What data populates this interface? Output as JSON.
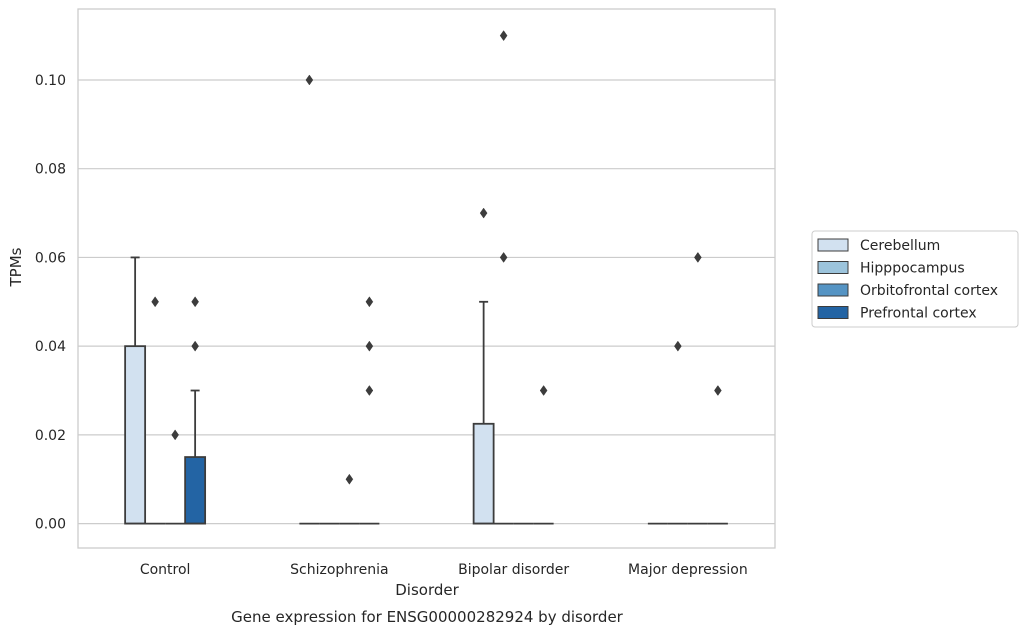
{
  "chart_data": {
    "type": "box",
    "xlabel": "Disorder",
    "ylabel": "TPMs",
    "caption": "Gene expression for ENSG00000282924 by disorder",
    "categories": [
      "Control",
      "Schizophrenia",
      "Bipolar disorder",
      "Major depression"
    ],
    "ylim": [
      -0.0055,
      0.116
    ],
    "yticks": [
      "0.00",
      "0.02",
      "0.04",
      "0.06",
      "0.08",
      "0.10"
    ],
    "grid": true,
    "legend_position": "right",
    "series": [
      {
        "name": "Cerebellum",
        "color": "#d2e1f0",
        "boxes": [
          {
            "q1": 0.0,
            "median": 0.0,
            "q3": 0.04,
            "whisker_low": 0.0,
            "whisker_high": 0.06,
            "outliers": []
          },
          {
            "q1": 0.0,
            "median": 0.0,
            "q3": 0.0,
            "whisker_low": 0.0,
            "whisker_high": 0.0,
            "outliers": [
              0.1
            ]
          },
          {
            "q1": 0.0,
            "median": 0.0,
            "q3": 0.0225,
            "whisker_low": 0.0,
            "whisker_high": 0.05,
            "outliers": [
              0.07
            ]
          },
          {
            "q1": 0.0,
            "median": 0.0,
            "q3": 0.0,
            "whisker_low": 0.0,
            "whisker_high": 0.0,
            "outliers": []
          }
        ]
      },
      {
        "name": "Hipppocampus",
        "color": "#9cc4dc",
        "boxes": [
          {
            "q1": 0.0,
            "median": 0.0,
            "q3": 0.0,
            "whisker_low": 0.0,
            "whisker_high": 0.0,
            "outliers": [
              0.05
            ]
          },
          {
            "q1": 0.0,
            "median": 0.0,
            "q3": 0.0,
            "whisker_low": 0.0,
            "whisker_high": 0.0,
            "outliers": []
          },
          {
            "q1": 0.0,
            "median": 0.0,
            "q3": 0.0,
            "whisker_low": 0.0,
            "whisker_high": 0.0,
            "outliers": [
              0.11,
              0.06
            ]
          },
          {
            "q1": 0.0,
            "median": 0.0,
            "q3": 0.0,
            "whisker_low": 0.0,
            "whisker_high": 0.0,
            "outliers": [
              0.04
            ]
          }
        ]
      },
      {
        "name": "Orbitofrontal cortex",
        "color": "#5594c4",
        "boxes": [
          {
            "q1": 0.0,
            "median": 0.0,
            "q3": 0.0,
            "whisker_low": 0.0,
            "whisker_high": 0.0,
            "outliers": [
              0.02
            ]
          },
          {
            "q1": 0.0,
            "median": 0.0,
            "q3": 0.0,
            "whisker_low": 0.0,
            "whisker_high": 0.0,
            "outliers": [
              0.01
            ]
          },
          {
            "q1": 0.0,
            "median": 0.0,
            "q3": 0.0,
            "whisker_low": 0.0,
            "whisker_high": 0.0,
            "outliers": []
          },
          {
            "q1": 0.0,
            "median": 0.0,
            "q3": 0.0,
            "whisker_low": 0.0,
            "whisker_high": 0.0,
            "outliers": [
              0.06
            ]
          }
        ]
      },
      {
        "name": "Prefrontal cortex",
        "color": "#2364a4",
        "boxes": [
          {
            "q1": 0.0,
            "median": 0.0,
            "q3": 0.015,
            "whisker_low": 0.0,
            "whisker_high": 0.03,
            "outliers": [
              0.05,
              0.04
            ]
          },
          {
            "q1": 0.0,
            "median": 0.0,
            "q3": 0.0,
            "whisker_low": 0.0,
            "whisker_high": 0.0,
            "outliers": [
              0.05,
              0.04,
              0.03
            ]
          },
          {
            "q1": 0.0,
            "median": 0.0,
            "q3": 0.0,
            "whisker_low": 0.0,
            "whisker_high": 0.0,
            "outliers": [
              0.03
            ]
          },
          {
            "q1": 0.0,
            "median": 0.0,
            "q3": 0.0,
            "whisker_low": 0.0,
            "whisker_high": 0.0,
            "outliers": [
              0.03
            ]
          }
        ]
      }
    ]
  }
}
